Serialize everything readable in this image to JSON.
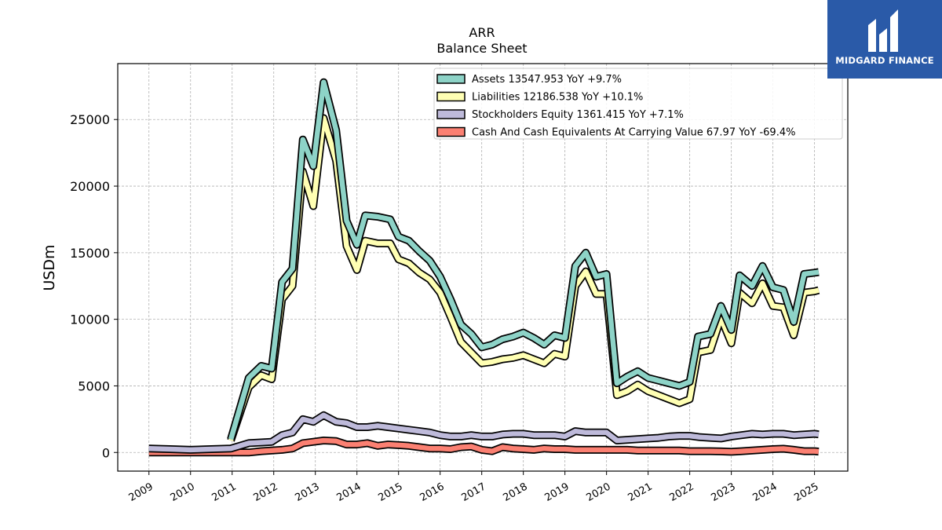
{
  "logo": {
    "brand": "MIDGARD FINANCE",
    "icon": "midgard-logo-icon",
    "color": "#2a5aa8"
  },
  "chart_data": {
    "type": "line",
    "title": "ARR",
    "subtitle": "Balance  Sheet",
    "ylabel": "USDm",
    "xlabel": "",
    "ylim": [
      -1400,
      29200
    ],
    "xlim": [
      2008.25,
      2025.8
    ],
    "yticks": [
      0,
      5000,
      10000,
      15000,
      20000,
      25000
    ],
    "xticks": [
      "2009",
      "2010",
      "2011",
      "2012",
      "2013",
      "2014",
      "2015",
      "2016",
      "2017",
      "2018",
      "2019",
      "2020",
      "2021",
      "2022",
      "2023",
      "2024",
      "2025"
    ],
    "grid": true,
    "legend_position": "top-right",
    "series": [
      {
        "name": "Assets",
        "legend_label": "Assets  13547.953 YoY +9.7%",
        "color": "#8dd3c7",
        "x": [
          2010.97,
          2011.4,
          2011.7,
          2011.95,
          2012.2,
          2012.45,
          2012.7,
          2012.95,
          2013.2,
          2013.5,
          2013.75,
          2014.0,
          2014.2,
          2014.5,
          2014.8,
          2015.0,
          2015.25,
          2015.5,
          2015.75,
          2016.0,
          2016.25,
          2016.5,
          2016.75,
          2017.0,
          2017.25,
          2017.5,
          2017.75,
          2018.0,
          2018.25,
          2018.5,
          2018.75,
          2019.0,
          2019.25,
          2019.5,
          2019.75,
          2020.0,
          2020.25,
          2020.5,
          2020.75,
          2021.0,
          2021.25,
          2021.5,
          2021.75,
          2022.0,
          2022.2,
          2022.5,
          2022.75,
          2023.0,
          2023.2,
          2023.5,
          2023.75,
          2024.0,
          2024.25,
          2024.5,
          2024.75,
          2025.0,
          2025.1
        ],
        "values": [
          1000,
          5600,
          6500,
          6300,
          12800,
          13800,
          23500,
          21500,
          27800,
          24200,
          17400,
          15600,
          17800,
          17700,
          17500,
          16200,
          15900,
          15100,
          14400,
          13200,
          11500,
          9600,
          8900,
          7900,
          8100,
          8500,
          8700,
          9000,
          8600,
          8100,
          8800,
          8600,
          14000,
          15000,
          13200,
          13400,
          5200,
          5700,
          6100,
          5600,
          5400,
          5200,
          5000,
          5300,
          8700,
          8900,
          11000,
          9200,
          13300,
          12500,
          14000,
          12400,
          12200,
          9800,
          13400,
          13500,
          13548
        ]
      },
      {
        "name": "Liabilities",
        "legend_label": "Liabilities  12186.538 YoY +10.1%",
        "color": "#ffffb3",
        "x": [
          2010.97,
          2011.4,
          2011.7,
          2011.95,
          2012.2,
          2012.45,
          2012.7,
          2012.95,
          2013.2,
          2013.5,
          2013.75,
          2014.0,
          2014.2,
          2014.5,
          2014.8,
          2015.0,
          2015.25,
          2015.5,
          2015.75,
          2016.0,
          2016.25,
          2016.5,
          2016.75,
          2017.0,
          2017.25,
          2017.5,
          2017.75,
          2018.0,
          2018.25,
          2018.5,
          2018.75,
          2019.0,
          2019.25,
          2019.5,
          2019.75,
          2020.0,
          2020.25,
          2020.5,
          2020.75,
          2021.0,
          2021.25,
          2021.5,
          2021.75,
          2022.0,
          2022.2,
          2022.5,
          2022.75,
          2023.0,
          2023.2,
          2023.5,
          2023.75,
          2024.0,
          2024.25,
          2024.5,
          2024.75,
          2025.0,
          2025.1
        ],
        "values": [
          900,
          4900,
          5800,
          5500,
          11500,
          12500,
          21100,
          18500,
          25100,
          21900,
          15500,
          13700,
          15900,
          15700,
          15700,
          14500,
          14200,
          13500,
          13000,
          12000,
          10200,
          8300,
          7500,
          6700,
          6800,
          7000,
          7100,
          7300,
          7000,
          6700,
          7400,
          7200,
          12500,
          13600,
          11900,
          11900,
          4300,
          4600,
          5100,
          4600,
          4300,
          4000,
          3700,
          4000,
          7500,
          7700,
          10100,
          8200,
          12000,
          11200,
          12700,
          11000,
          10900,
          8800,
          12000,
          12100,
          12187
        ]
      },
      {
        "name": "Stockholders Equity",
        "legend_label": "Stockholders Equity  1361.415 YoY +7.1%",
        "color": "#bebada",
        "x": [
          2009.0,
          2009.5,
          2010.0,
          2010.5,
          2010.97,
          2011.4,
          2011.7,
          2011.95,
          2012.2,
          2012.45,
          2012.7,
          2012.95,
          2013.2,
          2013.5,
          2013.75,
          2014.0,
          2014.25,
          2014.5,
          2014.75,
          2015.0,
          2015.25,
          2015.5,
          2015.75,
          2016.0,
          2016.25,
          2016.5,
          2016.75,
          2017.0,
          2017.25,
          2017.5,
          2017.75,
          2018.0,
          2018.25,
          2018.5,
          2018.75,
          2019.0,
          2019.25,
          2019.5,
          2019.75,
          2020.0,
          2020.25,
          2020.5,
          2020.75,
          2021.0,
          2021.25,
          2021.5,
          2021.75,
          2022.0,
          2022.25,
          2022.5,
          2022.75,
          2023.0,
          2023.25,
          2023.5,
          2023.75,
          2024.0,
          2024.25,
          2024.5,
          2024.75,
          2025.0,
          2025.1
        ],
        "values": [
          300,
          250,
          200,
          250,
          300,
          700,
          750,
          800,
          1300,
          1500,
          2500,
          2300,
          2800,
          2300,
          2200,
          1900,
          1900,
          2000,
          1900,
          1800,
          1700,
          1600,
          1500,
          1300,
          1200,
          1200,
          1300,
          1200,
          1200,
          1350,
          1400,
          1400,
          1300,
          1300,
          1300,
          1200,
          1600,
          1500,
          1500,
          1500,
          900,
          950,
          1000,
          1050,
          1100,
          1200,
          1250,
          1250,
          1150,
          1100,
          1050,
          1200,
          1300,
          1400,
          1350,
          1400,
          1400,
          1300,
          1350,
          1400,
          1361
        ]
      },
      {
        "name": "Cash And Cash Equivalents At Carrying Value",
        "legend_label": "Cash And Cash Equivalents At Carrying Value  67.97 YoY -69.4%",
        "color": "#fb8072",
        "x": [
          2009.0,
          2009.5,
          2010.0,
          2010.5,
          2010.97,
          2011.4,
          2011.7,
          2011.95,
          2012.2,
          2012.45,
          2012.7,
          2012.95,
          2013.2,
          2013.5,
          2013.75,
          2014.0,
          2014.25,
          2014.5,
          2014.75,
          2015.0,
          2015.25,
          2015.5,
          2015.75,
          2016.0,
          2016.25,
          2016.5,
          2016.75,
          2017.0,
          2017.25,
          2017.5,
          2017.75,
          2018.0,
          2018.25,
          2018.5,
          2018.75,
          2019.0,
          2019.25,
          2019.5,
          2019.75,
          2020.0,
          2020.25,
          2020.5,
          2020.75,
          2021.0,
          2021.25,
          2021.5,
          2021.75,
          2022.0,
          2022.25,
          2022.5,
          2022.75,
          2023.0,
          2023.25,
          2023.5,
          2023.75,
          2024.0,
          2024.25,
          2024.5,
          2024.75,
          2025.0,
          2025.1
        ],
        "values": [
          0,
          0,
          0,
          0,
          0,
          0,
          100,
          150,
          200,
          300,
          700,
          800,
          900,
          850,
          600,
          600,
          700,
          500,
          600,
          550,
          500,
          400,
          300,
          300,
          250,
          400,
          450,
          200,
          100,
          400,
          300,
          250,
          200,
          300,
          250,
          250,
          200,
          200,
          200,
          200,
          200,
          200,
          150,
          150,
          150,
          150,
          150,
          100,
          100,
          100,
          80,
          50,
          100,
          150,
          200,
          250,
          280,
          200,
          100,
          100,
          68
        ]
      }
    ]
  }
}
